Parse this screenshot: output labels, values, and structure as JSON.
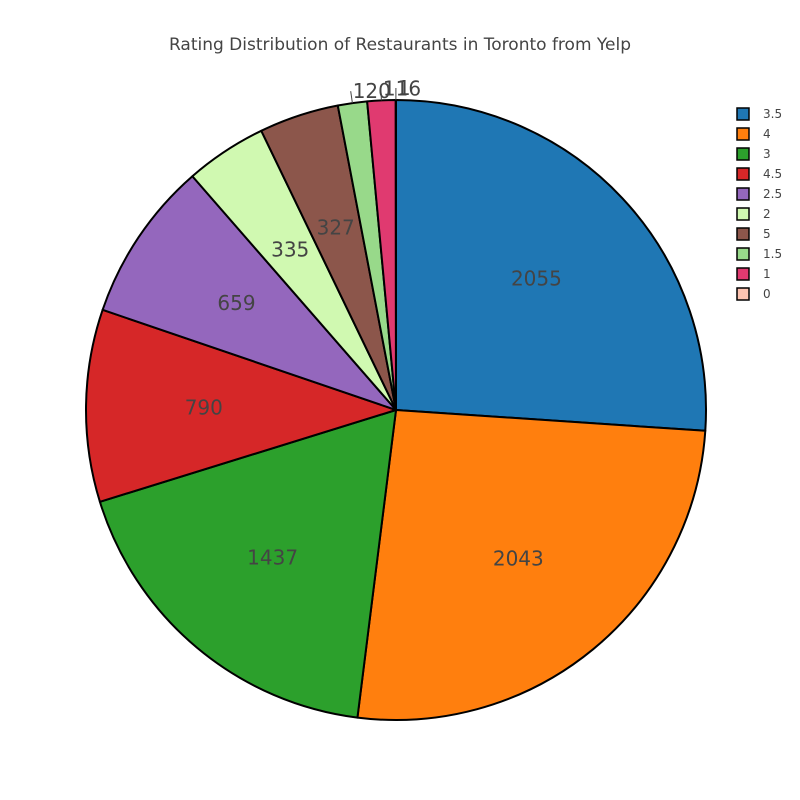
{
  "chart_data": {
    "type": "pie",
    "title": "Rating Distribution of Restaurants in Toronto from Yelp",
    "slices": [
      {
        "label": "3.5",
        "value": 2055,
        "color": "#1f77b4"
      },
      {
        "label": "4",
        "value": 2043,
        "color": "#ff7f0e"
      },
      {
        "label": "3",
        "value": 1437,
        "color": "#2ca02c"
      },
      {
        "label": "4.5",
        "value": 790,
        "color": "#d62728"
      },
      {
        "label": "2.5",
        "value": 659,
        "color": "#9467bd"
      },
      {
        "label": "2",
        "value": 335,
        "color": "#d0f9b1"
      },
      {
        "label": "5",
        "value": 327,
        "color": "#8c564b"
      },
      {
        "label": "1.5",
        "value": 120,
        "color": "#98d98a"
      },
      {
        "label": "1",
        "value": 116,
        "color": "#e03a70"
      },
      {
        "label": "0",
        "value": 1,
        "color": "#fdc3b0"
      }
    ],
    "legend_position": "top-right",
    "slice_border_color": "#000000"
  }
}
